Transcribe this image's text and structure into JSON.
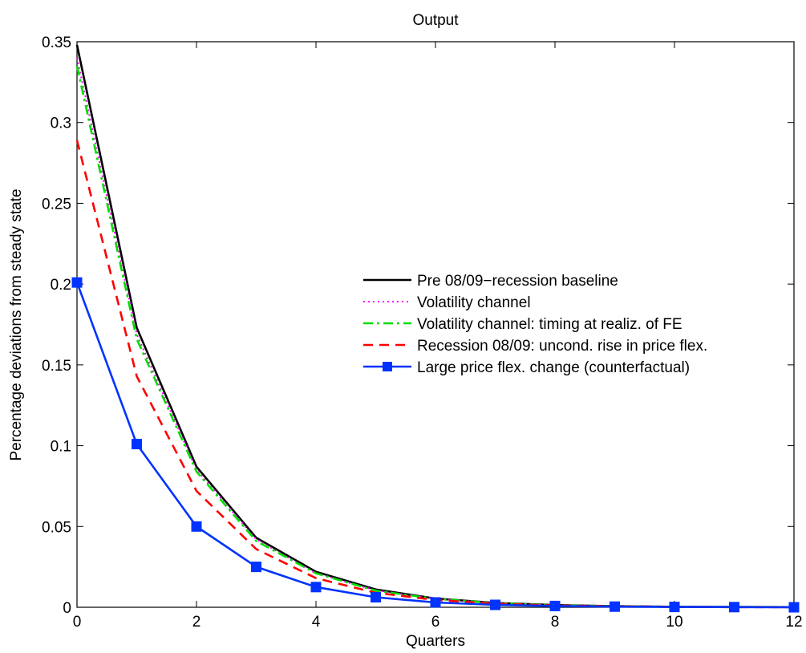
{
  "chart_data": {
    "type": "line",
    "title": "Output",
    "xlabel": "Quarters",
    "ylabel": "Percentage deviations from steady state",
    "xlim": [
      0,
      12
    ],
    "ylim": [
      0,
      0.35
    ],
    "x_ticks": [
      "0",
      "2",
      "4",
      "6",
      "8",
      "10",
      "12"
    ],
    "y_ticks": [
      "0",
      "0.05",
      "0.1",
      "0.15",
      "0.2",
      "0.25",
      "0.3",
      "0.35"
    ],
    "grid": false,
    "legend_position": "right",
    "x": [
      0,
      1,
      2,
      3,
      4,
      5,
      6,
      7,
      8,
      9,
      10,
      11,
      12
    ],
    "series": [
      {
        "name": "Pre 08/09−recession baseline",
        "color": "#000000",
        "style": "solid",
        "marker": "none",
        "values": [
          0.348,
          0.173,
          0.087,
          0.043,
          0.022,
          0.011,
          0.0054,
          0.0027,
          0.0014,
          0.0007,
          0.0003,
          0.0002,
          0.0001
        ]
      },
      {
        "name": "Volatility channel",
        "color": "#ff00ff",
        "style": "dotted",
        "marker": "none",
        "values": [
          0.34,
          0.169,
          0.085,
          0.042,
          0.021,
          0.0105,
          0.0053,
          0.0026,
          0.0013,
          0.0007,
          0.0003,
          0.0002,
          0.0001
        ]
      },
      {
        "name": "Volatility channel: timing at realiz. of FE",
        "color": "#00dd00",
        "style": "dashdot",
        "marker": "none",
        "values": [
          0.335,
          0.166,
          0.084,
          0.041,
          0.021,
          0.0103,
          0.0052,
          0.0026,
          0.0013,
          0.0006,
          0.0003,
          0.0002,
          0.0001
        ]
      },
      {
        "name": "Recession 08/09: uncond. rise in price flex.",
        "color": "#ff0000",
        "style": "dashed",
        "marker": "none",
        "values": [
          0.289,
          0.143,
          0.072,
          0.036,
          0.018,
          0.009,
          0.0045,
          0.0022,
          0.0011,
          0.0006,
          0.0003,
          0.0001,
          0.0001
        ]
      },
      {
        "name": "Large price flex. change (counterfactual)",
        "color": "#0033ff",
        "style": "solid",
        "marker": "square",
        "values": [
          0.201,
          0.101,
          0.05,
          0.025,
          0.0125,
          0.0062,
          0.003,
          0.0015,
          0.0008,
          0.0004,
          0.0002,
          0.0001,
          0.0
        ]
      }
    ]
  }
}
